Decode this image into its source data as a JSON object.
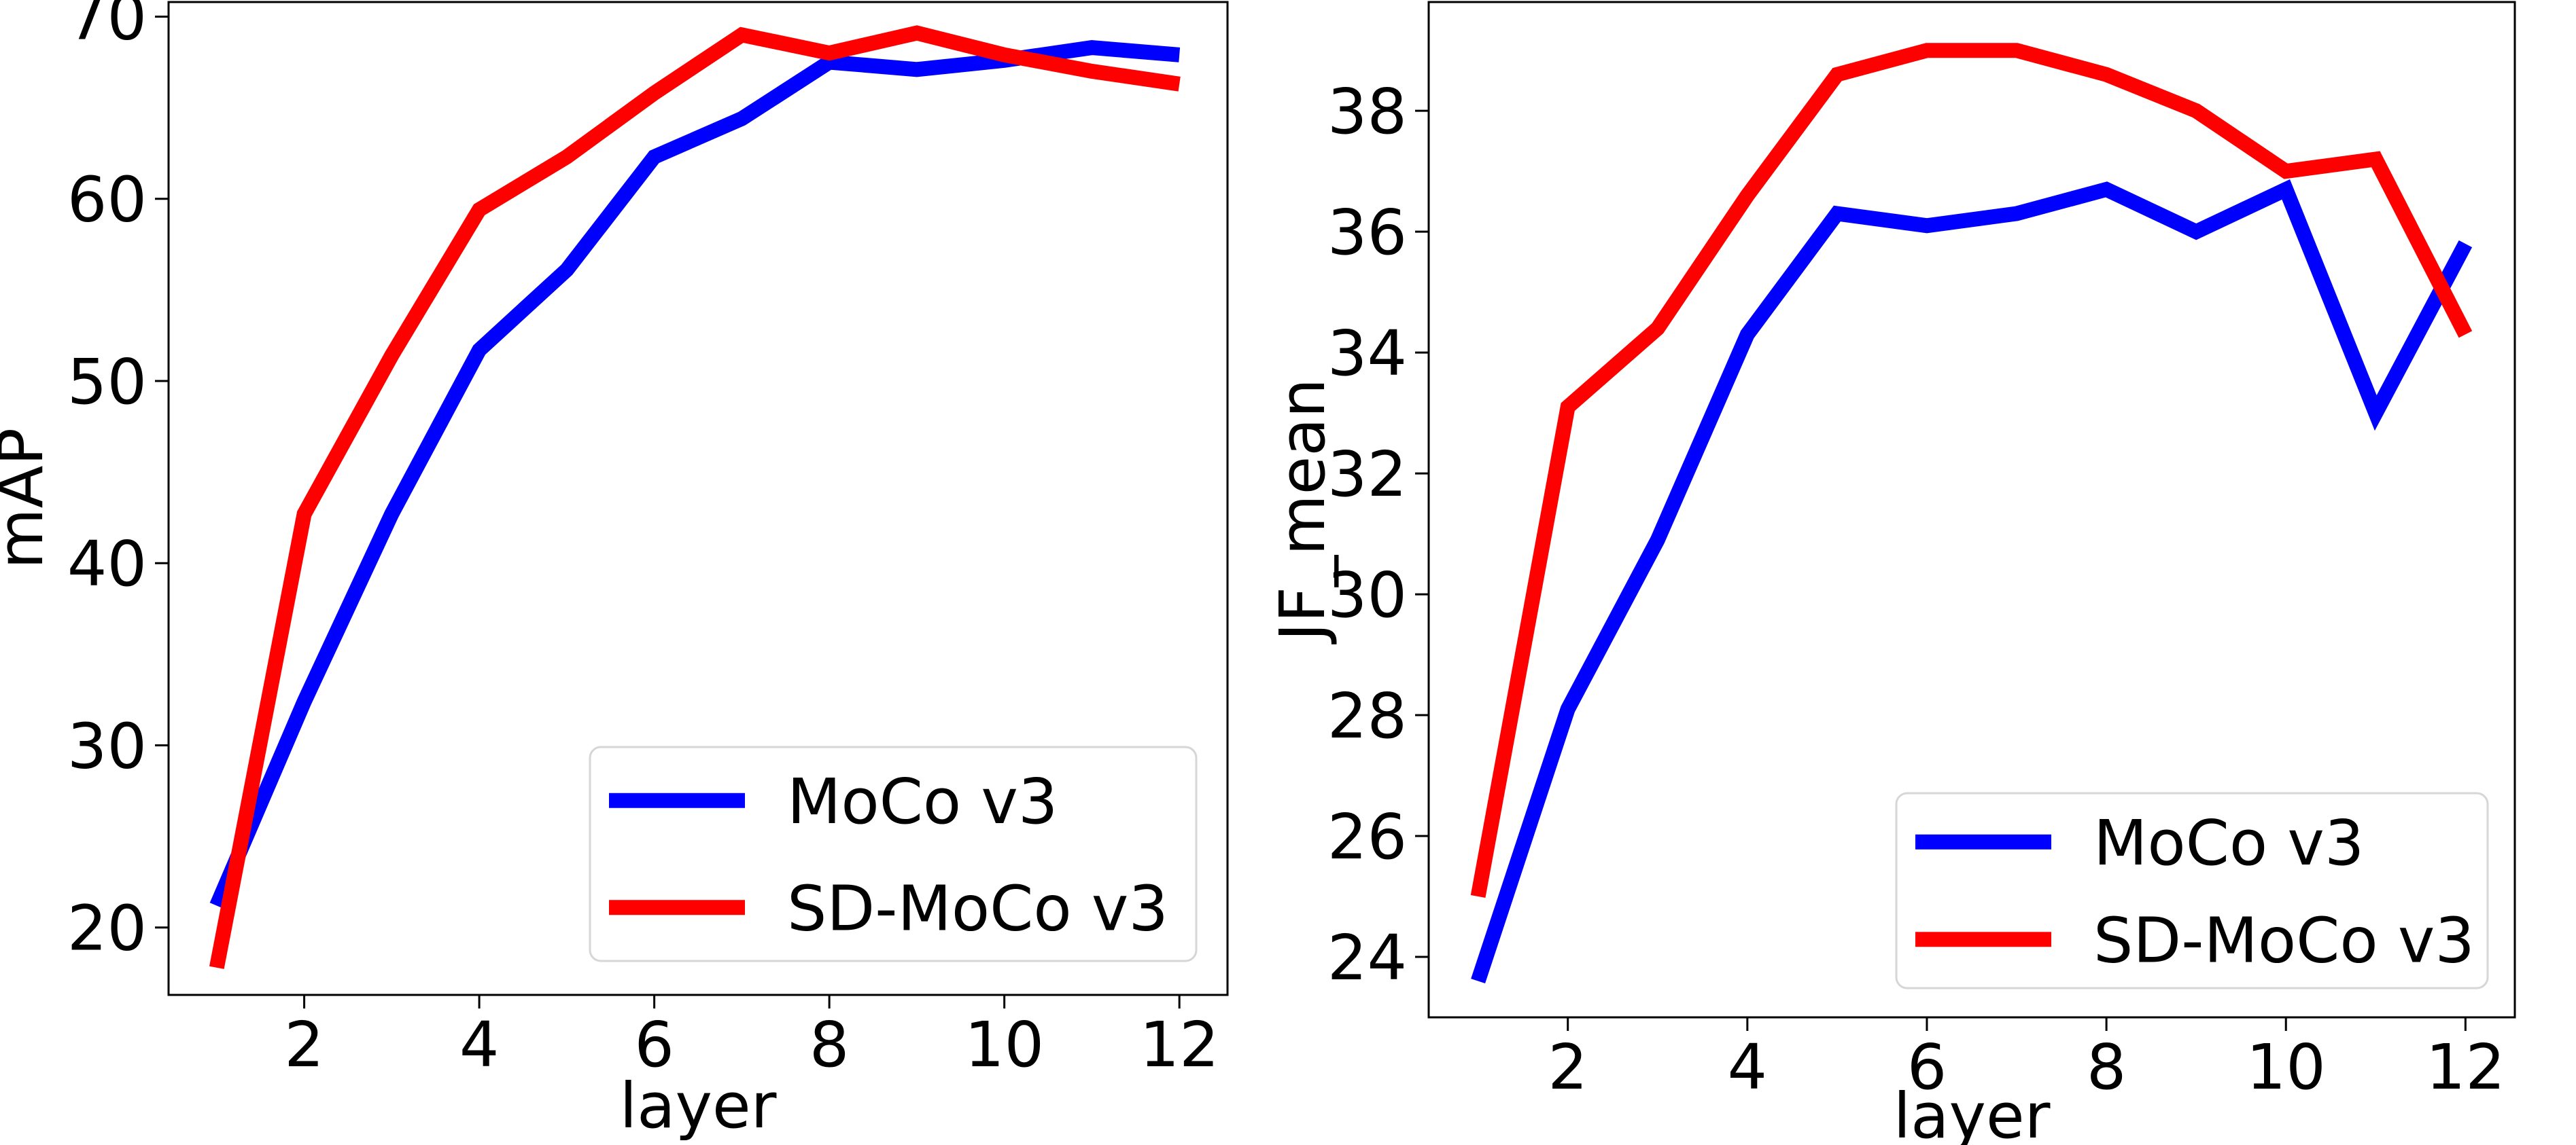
{
  "chart_data": [
    {
      "type": "line",
      "xlabel": "layer",
      "ylabel": "mAP",
      "xlim": [
        0.45,
        12.55
      ],
      "ylim": [
        16.3,
        70.8
      ],
      "xticks": [
        "2",
        "4",
        "6",
        "8",
        "10",
        "12"
      ],
      "yticks": [
        "20",
        "30",
        "40",
        "50",
        "60",
        "70"
      ],
      "x": [
        1,
        2,
        3,
        4,
        5,
        6,
        7,
        8,
        9,
        10,
        11,
        12
      ],
      "series": [
        {
          "name": "MoCo v3",
          "color": "#0000ff",
          "values": [
            21.2,
            32.4,
            42.7,
            51.7,
            56.1,
            62.3,
            64.4,
            67.5,
            67.1,
            67.6,
            68.3,
            67.9
          ]
        },
        {
          "name": "SD-MoCo v3",
          "color": "#ff0000",
          "values": [
            17.8,
            42.7,
            51.4,
            59.4,
            62.3,
            65.8,
            69.0,
            68.0,
            69.1,
            67.9,
            67.0,
            66.3
          ]
        }
      ],
      "grid": false,
      "legend_position": "lower-right"
    },
    {
      "type": "line",
      "xlabel": "layer",
      "ylabel": "JF_mean",
      "xlim": [
        0.45,
        12.55
      ],
      "ylim": [
        23.0,
        39.8
      ],
      "xticks": [
        "2",
        "4",
        "6",
        "8",
        "10",
        "12"
      ],
      "yticks": [
        "24",
        "26",
        "28",
        "30",
        "32",
        "34",
        "36",
        "38"
      ],
      "x": [
        1,
        2,
        3,
        4,
        5,
        6,
        7,
        8,
        9,
        10,
        11,
        12
      ],
      "series": [
        {
          "name": "MoCo v3",
          "color": "#0000ff",
          "values": [
            23.6,
            28.1,
            30.9,
            34.3,
            36.3,
            36.1,
            36.3,
            36.7,
            36.0,
            36.7,
            33.0,
            35.8
          ]
        },
        {
          "name": "SD-MoCo v3",
          "color": "#ff0000",
          "values": [
            25.0,
            33.1,
            34.4,
            36.6,
            38.6,
            39.0,
            39.0,
            38.6,
            38.0,
            37.0,
            37.2,
            34.3
          ]
        }
      ],
      "grid": false,
      "legend_position": "lower-right"
    }
  ]
}
